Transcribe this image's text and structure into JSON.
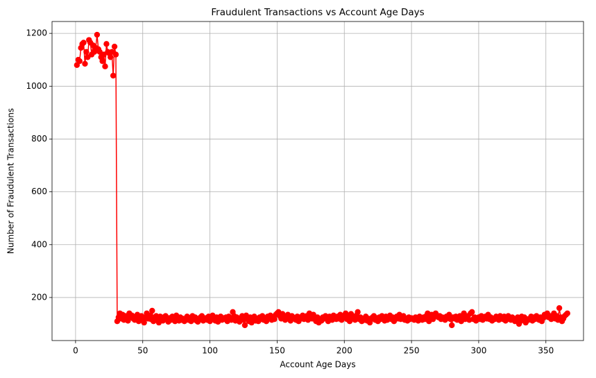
{
  "chart_data": {
    "type": "line",
    "title": "Fraudulent Transactions vs Account Age Days",
    "xlabel": "Account Age Days",
    "ylabel": "Number of Fraudulent Transactions",
    "x": [
      1,
      2,
      3,
      4,
      5,
      6,
      7,
      8,
      9,
      10,
      11,
      12,
      13,
      14,
      15,
      16,
      17,
      18,
      19,
      20,
      21,
      22,
      23,
      24,
      25,
      26,
      27,
      28,
      29,
      30,
      31,
      32,
      33,
      34,
      35,
      36,
      37,
      38,
      39,
      40,
      41,
      42,
      43,
      44,
      45,
      46,
      47,
      48,
      49,
      50,
      51,
      52,
      53,
      54,
      55,
      56,
      57,
      58,
      59,
      60,
      61,
      62,
      63,
      64,
      65,
      66,
      67,
      68,
      69,
      70,
      71,
      72,
      73,
      74,
      75,
      76,
      77,
      78,
      79,
      80,
      81,
      82,
      83,
      84,
      85,
      86,
      87,
      88,
      89,
      90,
      91,
      92,
      93,
      94,
      95,
      96,
      97,
      98,
      99,
      100,
      101,
      102,
      103,
      104,
      105,
      106,
      107,
      108,
      109,
      110,
      111,
      112,
      113,
      114,
      115,
      116,
      117,
      118,
      119,
      120,
      121,
      122,
      123,
      124,
      125,
      126,
      127,
      128,
      129,
      130,
      131,
      132,
      133,
      134,
      135,
      136,
      137,
      138,
      139,
      140,
      141,
      142,
      143,
      144,
      145,
      146,
      147,
      148,
      149,
      150,
      151,
      152,
      153,
      154,
      155,
      156,
      157,
      158,
      159,
      160,
      161,
      162,
      163,
      164,
      165,
      166,
      167,
      168,
      169,
      170,
      171,
      172,
      173,
      174,
      175,
      176,
      177,
      178,
      179,
      180,
      181,
      182,
      183,
      184,
      185,
      186,
      187,
      188,
      189,
      190,
      191,
      192,
      193,
      194,
      195,
      196,
      197,
      198,
      199,
      200,
      201,
      202,
      203,
      204,
      205,
      206,
      207,
      208,
      209,
      210,
      211,
      212,
      213,
      214,
      215,
      216,
      217,
      218,
      219,
      220,
      221,
      222,
      223,
      224,
      225,
      226,
      227,
      228,
      229,
      230,
      231,
      232,
      233,
      234,
      235,
      236,
      237,
      238,
      239,
      240,
      241,
      242,
      243,
      244,
      245,
      246,
      247,
      248,
      249,
      250,
      251,
      252,
      253,
      254,
      255,
      256,
      257,
      258,
      259,
      260,
      261,
      262,
      263,
      264,
      265,
      266,
      267,
      268,
      269,
      270,
      271,
      272,
      273,
      274,
      275,
      276,
      277,
      278,
      279,
      280,
      281,
      282,
      283,
      284,
      285,
      286,
      287,
      288,
      289,
      290,
      291,
      292,
      293,
      294,
      295,
      296,
      297,
      298,
      299,
      300,
      301,
      302,
      303,
      304,
      305,
      306,
      307,
      308,
      309,
      310,
      311,
      312,
      313,
      314,
      315,
      316,
      317,
      318,
      319,
      320,
      321,
      322,
      323,
      324,
      325,
      326,
      327,
      328,
      329,
      330,
      331,
      332,
      333,
      334,
      335,
      336,
      337,
      338,
      339,
      340,
      341,
      342,
      343,
      344,
      345,
      346,
      347,
      348,
      349,
      350,
      351,
      352,
      353,
      354,
      355,
      356,
      357,
      358,
      359,
      360,
      361,
      362,
      363,
      364,
      365,
      366
    ],
    "series": [
      {
        "color": "#ff0000",
        "values": [
          1080,
          1100,
          1095,
          1145,
          1160,
          1165,
          1085,
          1130,
          1110,
          1175,
          1165,
          1120,
          1155,
          1130,
          1145,
          1195,
          1140,
          1130,
          1110,
          1095,
          1120,
          1075,
          1160,
          1130,
          1125,
          1110,
          1130,
          1040,
          1150,
          1120,
          110,
          125,
          140,
          120,
          135,
          115,
          130,
          118,
          112,
          140,
          125,
          132,
          120,
          115,
          128,
          135,
          110,
          122,
          130,
          118,
          105,
          125,
          140,
          120,
          132,
          118,
          150,
          110,
          125,
          130,
          115,
          105,
          128,
          120,
          112,
          126,
          130,
          118,
          108,
          122,
          115,
          128,
          120,
          110,
          132,
          118,
          112,
          125,
          115,
          120,
          110,
          118,
          128,
          115,
          122,
          110,
          130,
          118,
          125,
          112,
          108,
          120,
          125,
          130,
          112,
          118,
          122,
          115,
          128,
          110,
          120,
          132,
          118,
          112,
          125,
          108,
          120,
          128,
          115,
          122,
          118,
          125,
          110,
          128,
          120,
          115,
          145,
          130,
          112,
          125,
          118,
          108,
          122,
          130,
          115,
          95,
          132,
          120,
          110,
          125,
          105,
          118,
          128,
          112,
          120,
          110,
          125,
          118,
          130,
          115,
          122,
          110,
          128,
          120,
          132,
          115,
          125,
          118,
          135,
          140,
          145,
          130,
          120,
          138,
          125,
          115,
          128,
          135,
          118,
          112,
          130,
          125,
          120,
          115,
          128,
          110,
          125,
          120,
          132,
          118,
          125,
          130,
          115,
          140,
          128,
          120,
          135,
          118,
          110,
          125,
          105,
          118,
          112,
          125,
          120,
          130,
          118,
          110,
          128,
          122,
          115,
          132,
          125,
          118,
          128,
          120,
          135,
          115,
          125,
          130,
          140,
          118,
          125,
          110,
          138,
          120,
          128,
          115,
          132,
          145,
          118,
          125,
          110,
          120,
          115,
          128,
          112,
          120,
          105,
          118,
          125,
          130,
          115,
          122,
          110,
          125,
          118,
          130,
          120,
          112,
          128,
          115,
          120,
          132,
          118,
          125,
          110,
          122,
          128,
          120,
          135,
          118,
          125,
          130,
          115,
          120,
          112,
          125,
          118,
          122,
          120,
          115,
          125,
          118,
          112,
          128,
          120,
          115,
          125,
          118,
          130,
          140,
          110,
          125,
          135,
          118,
          128,
          140,
          132,
          125,
          130,
          118,
          125,
          120,
          115,
          128,
          122,
          135,
          118,
          95,
          125,
          120,
          128,
          115,
          122,
          130,
          110,
          125,
          140,
          118,
          125,
          130,
          115,
          140,
          145,
          118,
          125,
          112,
          120,
          125,
          118,
          130,
          115,
          122,
          128,
          120,
          135,
          118,
          125,
          112,
          120,
          118,
          128,
          125,
          115,
          130,
          120,
          118,
          128,
          112,
          125,
          130,
          118,
          115,
          125,
          120,
          110,
          118,
          125,
          100,
          110,
          128,
          120,
          125,
          105,
          118,
          115,
          120,
          128,
          112,
          125,
          118,
          130,
          120,
          115,
          125,
          110,
          122,
          135,
          128,
          140,
          125,
          130,
          118,
          125,
          140,
          120,
          130,
          115,
          160,
          125,
          110,
          120,
          130,
          135,
          140
        ]
      }
    ],
    "xlim": [
      -17.5,
      378
    ],
    "ylim": [
      37,
      1245
    ],
    "xticks": [
      0,
      50,
      100,
      150,
      200,
      250,
      300,
      350
    ],
    "yticks": [
      200,
      400,
      600,
      800,
      1000,
      1200
    ],
    "grid": true
  }
}
